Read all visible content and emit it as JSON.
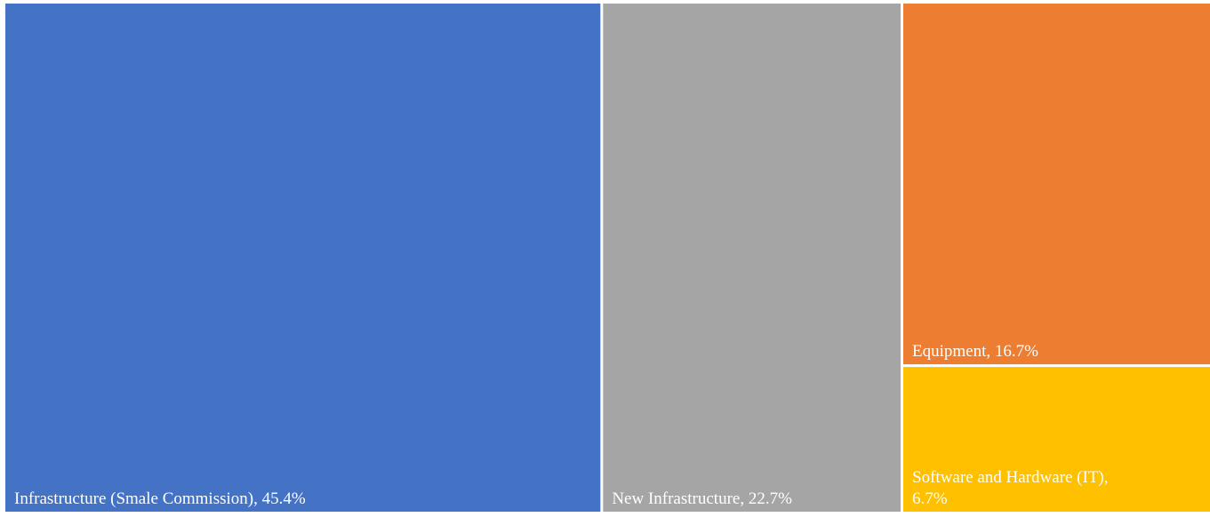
{
  "chart_data": {
    "type": "treemap",
    "title": "",
    "items": [
      {
        "label": "Infrastructure (Smale Commission)",
        "value": 45.4,
        "display": "Infrastructure (Smale Commission), 45.4%",
        "color": "#4472C4"
      },
      {
        "label": "New Infrastructure",
        "value": 22.7,
        "display": "New Infrastructure, 22.7%",
        "color": "#A5A5A5"
      },
      {
        "label": "Equipment",
        "value": 16.7,
        "display": "Equipment, 16.7%",
        "color": "#ED7D31"
      },
      {
        "label": "Software and Hardware (IT)",
        "value": 6.7,
        "display_lines": [
          "Software and Hardware (IT),",
          "6.7%"
        ],
        "color": "#FFC000"
      }
    ]
  }
}
